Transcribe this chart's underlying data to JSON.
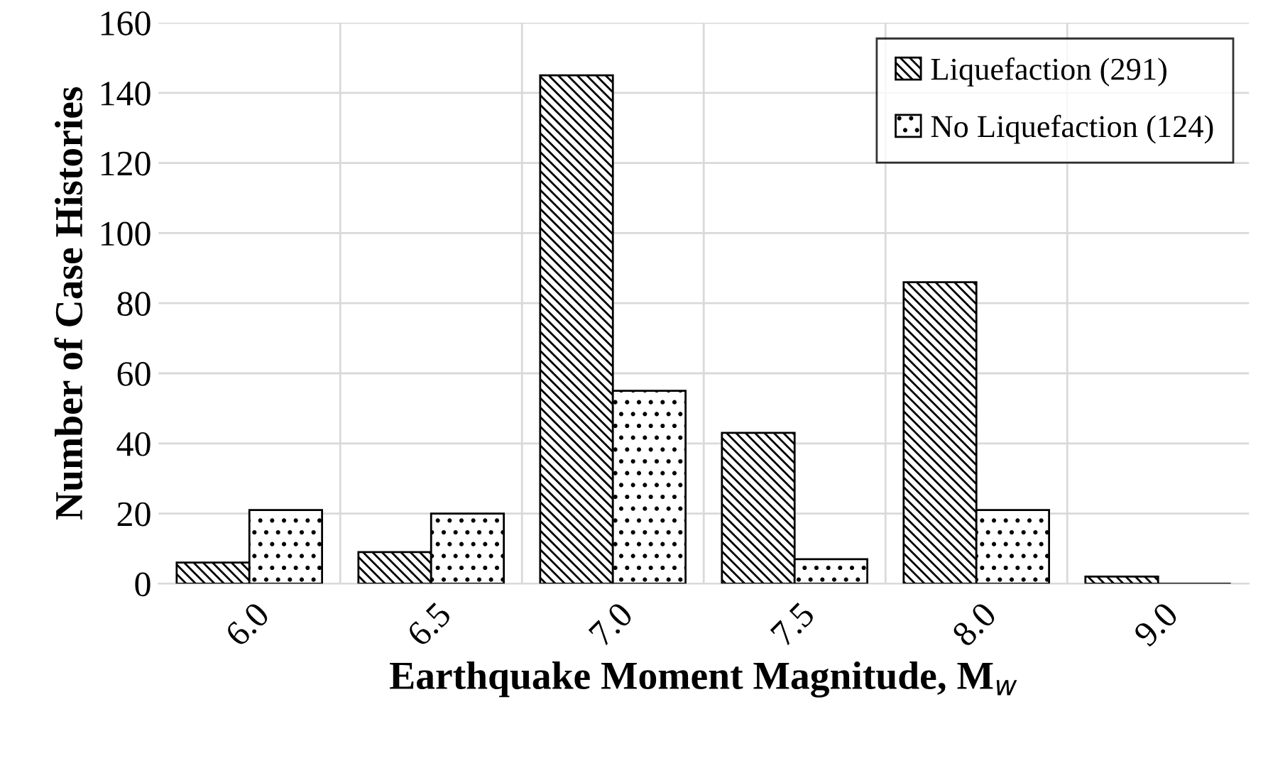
{
  "chart_data": {
    "type": "bar",
    "categories": [
      "6.0",
      "6.5",
      "7.0",
      "7.5",
      "8.0",
      "9.0"
    ],
    "series": [
      {
        "name": "Liquefaction (291)",
        "color": "#000000",
        "values": [
          6,
          9,
          145,
          43,
          86,
          2
        ]
      },
      {
        "name": "No Liquefaction (124)",
        "color": "#000000",
        "values": [
          21,
          20,
          55,
          7,
          21,
          0
        ]
      }
    ],
    "xlabel": "Earthquake Moment Magnitude, M$_{w}$",
    "ylabel": "Number of Case Histories",
    "ylim": [
      0,
      160
    ],
    "yticks": [
      0,
      20,
      40,
      60,
      80,
      100,
      120,
      140,
      160
    ],
    "grid": true,
    "legend": "top right"
  }
}
